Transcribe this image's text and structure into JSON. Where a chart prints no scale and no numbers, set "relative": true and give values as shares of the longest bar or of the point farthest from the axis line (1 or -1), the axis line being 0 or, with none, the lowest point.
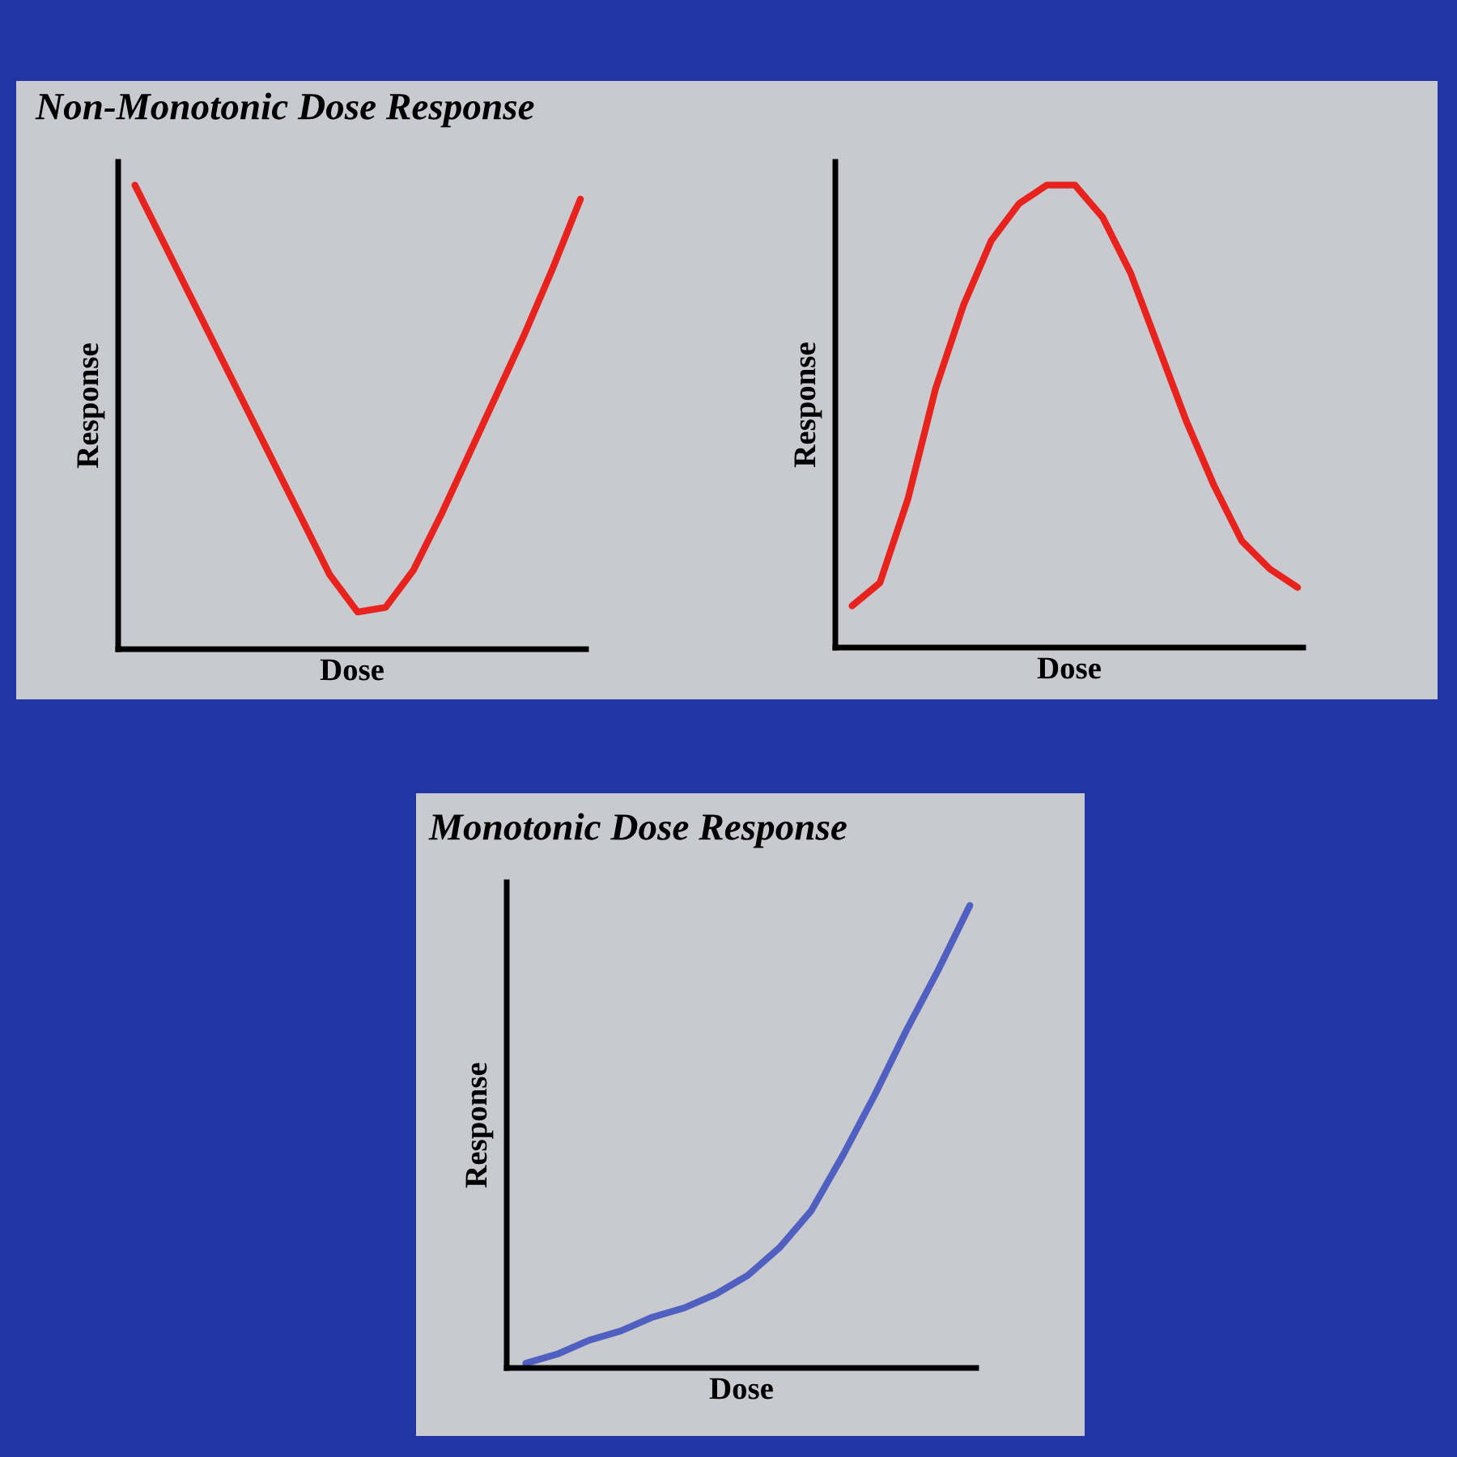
{
  "chart_data": [
    {
      "type": "line",
      "title": "Non-Monotonic Dose Response",
      "xlabel": "Dose",
      "ylabel": "Response",
      "relative": true,
      "categories": [
        null,
        null,
        null,
        null,
        null,
        null,
        null,
        null,
        null,
        null,
        null,
        null,
        null,
        null,
        null,
        null,
        null
      ],
      "series": [
        {
          "color": "#e8231e",
          "values": [
            1.0,
            0.88,
            0.76,
            0.64,
            0.52,
            0.4,
            0.28,
            0.16,
            0.08,
            0.09,
            0.17,
            0.29,
            0.42,
            0.55,
            0.68,
            0.82,
            0.97
          ]
        }
      ]
    },
    {
      "type": "line",
      "xlabel": "Dose",
      "ylabel": "Response",
      "relative": true,
      "categories": [
        null,
        null,
        null,
        null,
        null,
        null,
        null,
        null,
        null,
        null,
        null,
        null,
        null,
        null,
        null,
        null,
        null
      ],
      "series": [
        {
          "color": "#e8231e",
          "values": [
            0.09,
            0.14,
            0.32,
            0.56,
            0.74,
            0.88,
            0.96,
            1.0,
            1.0,
            0.93,
            0.81,
            0.65,
            0.49,
            0.35,
            0.23,
            0.17,
            0.13
          ]
        }
      ]
    },
    {
      "type": "line",
      "title": "Monotonic Dose Response",
      "xlabel": "Dose",
      "ylabel": "Response",
      "relative": true,
      "categories": [
        null,
        null,
        null,
        null,
        null,
        null,
        null,
        null,
        null,
        null,
        null,
        null,
        null,
        null,
        null
      ],
      "series": [
        {
          "color": "#5060c0",
          "values": [
            0.01,
            0.03,
            0.06,
            0.08,
            0.11,
            0.13,
            0.16,
            0.2,
            0.26,
            0.34,
            0.46,
            0.59,
            0.73,
            0.86,
            1.0
          ]
        }
      ]
    }
  ]
}
